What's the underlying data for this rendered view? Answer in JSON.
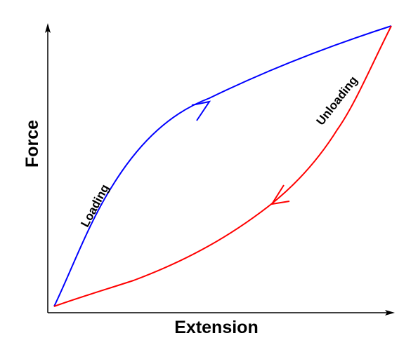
{
  "diagram": {
    "x_axis_label": "Extension",
    "y_axis_label": "Force",
    "loading": {
      "label": "Loading",
      "color": "#0000ff"
    },
    "unloading": {
      "label": "Unloading",
      "color": "#ff0000"
    },
    "axis_color": "#000000"
  }
}
